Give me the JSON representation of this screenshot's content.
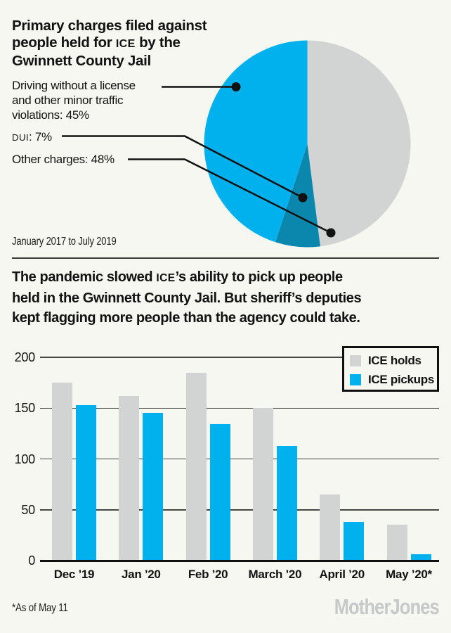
{
  "page": {
    "background": "#f7f7f1",
    "accent_blue": "#00b1ee",
    "dark_blue": "#0b86ad",
    "neutral_gray": "#d2d4d4"
  },
  "pie_section": {
    "title_lines": [
      {
        "pre": "Primary charges filed against"
      },
      {
        "pre": "people held for ",
        "sc": "ICE",
        "post": " by the"
      },
      {
        "pre": "Gwinnett County Jail"
      }
    ],
    "labels": {
      "driving_lines": [
        "Driving without a license",
        "and other minor traffic",
        "violations: 45%"
      ],
      "dui": {
        "sc": "DUI",
        "post": ": 7%"
      },
      "other": "Other charges: 48%"
    },
    "caption": "January 2017 to July 2019"
  },
  "bar_section": {
    "title_lines": [
      {
        "pre": "The pandemic slowed ",
        "sc": "ICE",
        "post": "’s ability to pick up people"
      },
      {
        "pre": "held in the Gwinnett County Jail. But sheriff’s deputies"
      },
      {
        "pre": "kept flagging more people than the agency could take."
      }
    ],
    "footnote": "*As of May 11",
    "logo": "MotherJones"
  },
  "chart_data": [
    {
      "type": "pie",
      "title": "Primary charges filed against people held for ICE by the Gwinnett County Jail",
      "subtitle": "January 2017 to July 2019",
      "labels": [
        "Other charges",
        "DUI",
        "Driving without a license and other minor traffic violations"
      ],
      "values": [
        48,
        7,
        45
      ],
      "colors": [
        "#d2d4d4",
        "#0b86ad",
        "#00b1ee"
      ],
      "start_angle_deg_clockwise_from_top": 0,
      "annotations": [
        "Driving without a license and other minor traffic violations: 45%",
        "DUI: 7%",
        "Other charges: 48%"
      ]
    },
    {
      "type": "bar",
      "title": "The pandemic slowed ICE’s ability to pick up people held in the Gwinnett County Jail. But sheriff’s deputies kept flagging more people than the agency could take.",
      "categories": [
        "Dec ’19",
        "Jan ’20",
        "Feb ’20",
        "March ’20",
        "April ’20",
        "May ’20*"
      ],
      "series": [
        {
          "name": "ICE holds",
          "color": "#d2d4d4",
          "values": [
            175,
            162,
            185,
            150,
            65,
            35
          ]
        },
        {
          "name": "ICE pickups",
          "color": "#00b1ee",
          "values": [
            153,
            145,
            134,
            113,
            38,
            6
          ]
        }
      ],
      "ylim": [
        0,
        200
      ],
      "yticks": [
        0,
        50,
        100,
        150,
        200
      ],
      "grid": true,
      "legend_position": "top-right",
      "footnote": "*As of May 11"
    }
  ]
}
